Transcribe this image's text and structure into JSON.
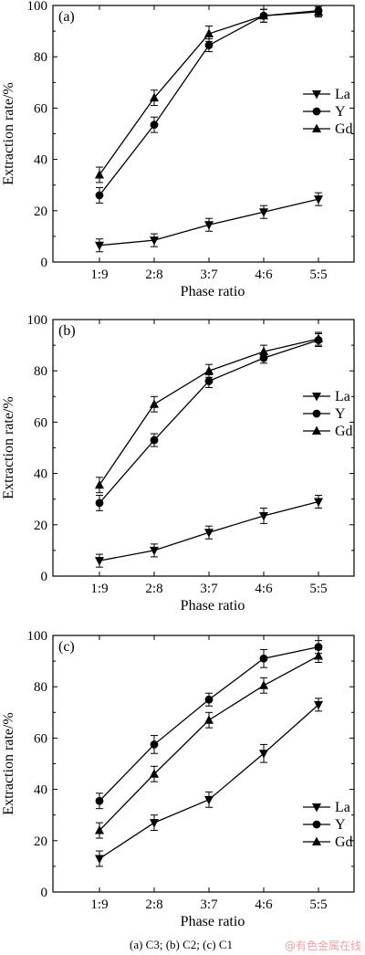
{
  "chart_data": [
    {
      "type": "line",
      "panel_label": "(a)",
      "categories": [
        "1:9",
        "2:8",
        "3:7",
        "4:6",
        "5:5"
      ],
      "xlabel": "Phase ratio",
      "ylabel": "Extraction rate/%",
      "ylim": [
        0,
        100
      ],
      "yticks": [
        0,
        20,
        40,
        60,
        80,
        100
      ],
      "legend_position": "right",
      "error_bars": true,
      "series": [
        {
          "name": "La",
          "marker": "triangle-down",
          "values": [
            6.5,
            8.5,
            14.5,
            19.5,
            24.5
          ],
          "errors": [
            2.5,
            2.5,
            2.5,
            2.5,
            2.5
          ]
        },
        {
          "name": "Y",
          "marker": "circle",
          "values": [
            26,
            53.5,
            84.5,
            96,
            98
          ],
          "errors": [
            3,
            3,
            2.5,
            2.5,
            2
          ]
        },
        {
          "name": "Gd",
          "marker": "triangle-up",
          "values": [
            34,
            64,
            89,
            96,
            97.5
          ],
          "errors": [
            3,
            3,
            3,
            2.5,
            2
          ]
        }
      ]
    },
    {
      "type": "line",
      "panel_label": "(b)",
      "categories": [
        "1:9",
        "2:8",
        "3:7",
        "4:6",
        "5:5"
      ],
      "xlabel": "Phase ratio",
      "ylabel": "Extraction rate/%",
      "ylim": [
        0,
        100
      ],
      "yticks": [
        0,
        20,
        40,
        60,
        80,
        100
      ],
      "legend_position": "right",
      "error_bars": true,
      "series": [
        {
          "name": "La",
          "marker": "triangle-down",
          "values": [
            6,
            10,
            17,
            23.5,
            29
          ],
          "errors": [
            2.5,
            2.5,
            2.5,
            3,
            2.5
          ]
        },
        {
          "name": "Y",
          "marker": "circle",
          "values": [
            28.5,
            53,
            76,
            85,
            92
          ],
          "errors": [
            3,
            2.5,
            2.5,
            2,
            2.5
          ]
        },
        {
          "name": "Gd",
          "marker": "triangle-up",
          "values": [
            35.5,
            67,
            80,
            87.5,
            92.5
          ],
          "errors": [
            3,
            3,
            2.5,
            2.5,
            2.5
          ]
        }
      ]
    },
    {
      "type": "line",
      "panel_label": "(c)",
      "categories": [
        "1:9",
        "2:8",
        "3:7",
        "4:6",
        "5:5"
      ],
      "xlabel": "Phase ratio",
      "ylabel": "Extraction rate/%",
      "ylim": [
        0,
        100
      ],
      "yticks": [
        0,
        20,
        40,
        60,
        80,
        100
      ],
      "legend_position": "bottom-right",
      "error_bars": true,
      "series": [
        {
          "name": "La",
          "marker": "triangle-down",
          "values": [
            13,
            27,
            36,
            54,
            73
          ],
          "errors": [
            3,
            3,
            3,
            3.5,
            2.5
          ]
        },
        {
          "name": "Y",
          "marker": "circle",
          "values": [
            35.5,
            57.5,
            75,
            91,
            95.5
          ],
          "errors": [
            3,
            3.5,
            2.5,
            3.5,
            2.5
          ]
        },
        {
          "name": "Gd",
          "marker": "triangle-up",
          "values": [
            24,
            46,
            67,
            80.5,
            92
          ],
          "errors": [
            3,
            3,
            3,
            3,
            2.5
          ]
        }
      ]
    }
  ],
  "caption": "(a) C3; (b) C2; (c) C1",
  "watermark": "@有色金属在线",
  "colors": {
    "line": "#000000",
    "watermark": "#f0a0a0"
  }
}
